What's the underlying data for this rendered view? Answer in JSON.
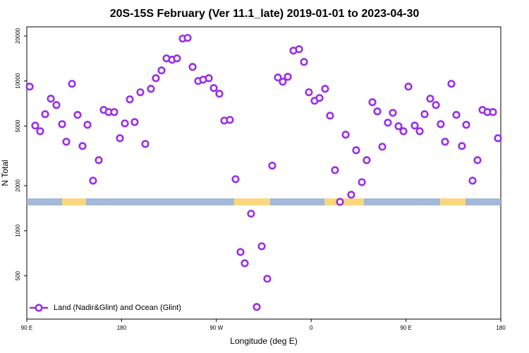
{
  "chart_data": {
    "type": "scatter",
    "title": "20S-15S February (Ver 11.1_late)   2019-01-01 to 2023-04-30",
    "x_label": "Longitude (deg E)",
    "y_label": "N Total",
    "y_log": true,
    "legend_position": "bottom-left",
    "xlim": [
      90,
      540
    ],
    "ylim": [
      257,
      23000
    ],
    "xticks": [
      {
        "value": 90,
        "label": "90 E"
      },
      180,
      {
        "value": 270,
        "label": "90 W"
      },
      {
        "value": 360,
        "label": "0"
      },
      {
        "value": 450,
        "label": "90 E"
      },
      {
        "value": 540,
        "label": "180"
      }
    ],
    "yticks": [
      500,
      1000,
      2000,
      5000,
      10000,
      20000
    ],
    "series": [
      {
        "name": "Land (Nadir&Glint) and Ocean (Glint)",
        "color": "#9b30e8",
        "x": [
          92.7,
          98,
          102.7,
          107.4,
          112.8,
          118.1,
          123.5,
          127.5,
          132.9,
          138.2,
          142.9,
          147.6,
          152.9,
          158.3,
          163,
          167.7,
          173,
          178.4,
          183.1,
          187.8,
          192.4,
          197.8,
          202.5,
          207.8,
          212.5,
          217.9,
          222.6,
          227.9,
          232.6,
          238,
          242.7,
          247.4,
          252.7,
          257.4,
          262.8,
          267.5,
          272.8,
          277.5,
          282.8,
          288.2,
          292.9,
          296.9,
          302.9,
          308.3,
          313,
          318.3,
          323,
          328.4,
          333,
          337.8,
          343.1,
          348.5,
          353.2,
          357.8,
          363.2,
          367.9,
          373.2,
          377.9,
          382.6,
          387.3,
          392.7,
          398,
          402.7,
          408.1,
          412.7,
          418.1,
          422.8,
          427.5,
          432.8,
          437.5,
          442.9,
          447.6,
          452.3,
          458.3,
          463,
          467.7,
          473,
          478.4,
          483,
          487.1,
          493.1,
          497.8,
          503.1,
          507.2,
          513.2,
          517.9,
          522.6,
          527.3,
          532.6,
          537.3
        ],
        "values": [
          9170,
          5040,
          4620,
          6000,
          7620,
          6910,
          5150,
          3930,
          9580,
          5940,
          3680,
          5100,
          2160,
          2960,
          6410,
          6200,
          6200,
          4150,
          5210,
          7540,
          5320,
          8410,
          3800,
          8870,
          10440,
          11770,
          14160,
          13860,
          14160,
          19190,
          19400,
          12420,
          10000,
          10210,
          10440,
          8970,
          8220,
          5440,
          5500,
          2210,
          721,
          607,
          1300,
          310,
          788,
          478,
          2720,
          10560,
          9890,
          10670,
          15950,
          16300,
          13410,
          8410,
          7380,
          7700,
          8870,
          5870,
          2540,
          1560,
          4380,
          1740,
          3450,
          2110,
          2960,
          7220,
          6270,
          3640,
          5270,
          6130,
          4990,
          4620,
          9170,
          5040,
          4620,
          6000,
          7620,
          6910,
          5150,
          3930,
          9580,
          5940,
          3680,
          5100,
          2160,
          2960,
          6410,
          6200,
          6200,
          4150
        ]
      }
    ]
  }
}
